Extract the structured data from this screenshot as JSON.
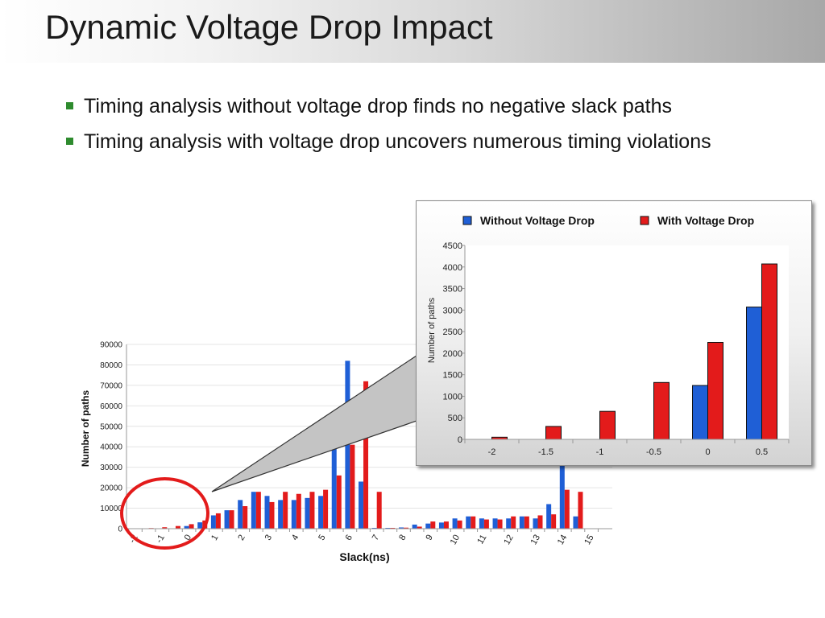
{
  "slide": {
    "title": "Dynamic Voltage Drop Impact",
    "bullets": [
      "Timing analysis without voltage drop finds no negative slack paths",
      "Timing analysis with voltage drop uncovers numerous timing violations"
    ],
    "bullet_color": "#2e8b2e",
    "highlight_color": "#e31b1b"
  },
  "chart_data": [
    {
      "type": "bar",
      "title": "",
      "xlabel": "Slack(ns)",
      "ylabel": "Number of paths",
      "ylim": [
        0,
        90000
      ],
      "yticks": [
        0,
        10000,
        20000,
        30000,
        40000,
        50000,
        60000,
        70000,
        80000,
        90000
      ],
      "categories": [
        "-2",
        "-1.5",
        "-1",
        "-0.5",
        "0",
        "0.5",
        "1",
        "1.5",
        "2",
        "2.5",
        "3",
        "3.5",
        "4",
        "4.5",
        "5",
        "5.5",
        "6",
        "6.5",
        "7",
        "7.5",
        "8",
        "8.5",
        "9",
        "9.5",
        "10",
        "10.5",
        "11",
        "11.5",
        "12",
        "12.5",
        "13",
        "13.5",
        "14",
        "14.5",
        "15"
      ],
      "tick_labels": [
        "-2",
        "-1",
        "0",
        "1",
        "2",
        "3",
        "4",
        "5",
        "6",
        "7",
        "8",
        "9",
        "10",
        "11",
        "12",
        "13",
        "14",
        "15"
      ],
      "grid": true,
      "legend": "none",
      "series": [
        {
          "name": "Without Voltage Drop",
          "color": "#1f5fd6",
          "values": [
            0,
            0,
            0,
            0,
            1300,
            3100,
            6500,
            9000,
            14000,
            18000,
            16000,
            14000,
            14000,
            15000,
            16000,
            44000,
            82000,
            23000,
            400,
            400,
            600,
            2000,
            2500,
            3000,
            5000,
            6000,
            5000,
            5000,
            5000,
            6000,
            5000,
            12000,
            42000,
            6000,
            0
          ]
        },
        {
          "name": "With Voltage Drop",
          "color": "#e31b1b",
          "values": [
            50,
            300,
            700,
            1300,
            2200,
            4000,
            7500,
            9000,
            11000,
            18000,
            13000,
            18000,
            17000,
            18000,
            19000,
            26000,
            41000,
            72000,
            18000,
            400,
            500,
            1000,
            3500,
            3500,
            4000,
            6000,
            4500,
            4500,
            6000,
            6000,
            6500,
            7000,
            19000,
            18000,
            0
          ]
        }
      ]
    },
    {
      "type": "bar",
      "title": "",
      "xlabel": "",
      "ylabel": "Number of paths",
      "ylim": [
        0,
        4500
      ],
      "yticks": [
        0,
        500,
        1000,
        1500,
        2000,
        2500,
        3000,
        3500,
        4000,
        4500
      ],
      "categories": [
        "-2",
        "-1.5",
        "-1",
        "-0.5",
        "0",
        "0.5"
      ],
      "grid": false,
      "legend": "top",
      "series": [
        {
          "name": "Without Voltage Drop",
          "color": "#1f5fd6",
          "values": [
            0,
            0,
            0,
            0,
            1250,
            3070
          ]
        },
        {
          "name": "With Voltage Drop",
          "color": "#e31b1b",
          "values": [
            50,
            300,
            650,
            1320,
            2250,
            4070
          ]
        }
      ]
    }
  ]
}
